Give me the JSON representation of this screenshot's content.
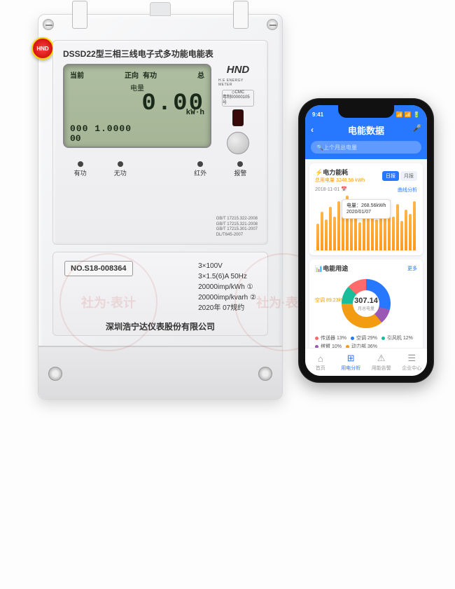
{
  "meter": {
    "badge": "HND",
    "title": "DSSD22型三相三线电子式多功能电能表",
    "lcd": {
      "r1a": "当前",
      "r1b": "正向 有功",
      "r1c": "总",
      "r2": "电量",
      "big": "0.00",
      "unit": "kW·h",
      "small": "000 1.0000",
      "small2": "00"
    },
    "brand": "HND",
    "brand_sub": "H.E ENERGY METER",
    "cert_top": "◇CMC",
    "cert_bot": "粤制00000105号",
    "leds": [
      "有功",
      "无功",
      "",
      "红外",
      "报警"
    ],
    "gb": [
      "GB/T 17215.322-2008",
      "GB/T 17215.321-2008",
      "GB/T 17215.301-2007",
      "DL/T645-2007"
    ],
    "serial": "NO.S18-008364",
    "specs": [
      "3×100V",
      "3×1.5(6)A    50Hz",
      "20000imp/kWh  ①",
      "20000imp/kvarh ②",
      "2020年    07规约"
    ],
    "mfr": "深圳浩宁达仪表股份有限公司",
    "watermark": "社为·表计"
  },
  "phone": {
    "time": "9:41",
    "signal": "📶 📶 🔋",
    "header": "电能数据",
    "search_ph": "上个月总电量",
    "card1": {
      "title": "电力能耗",
      "sub": "总用电量 3248.56 kWh",
      "pills": [
        "日报",
        "月报"
      ],
      "date": "2018-11-01  📅",
      "link": "曲线分析",
      "bars": [
        38,
        55,
        44,
        62,
        48,
        70,
        52,
        78,
        46,
        64,
        40,
        58,
        50,
        68,
        44,
        60,
        54,
        72,
        48,
        66,
        42,
        58,
        52,
        70
      ],
      "bar_color": "#ff9a1f",
      "tooltip_l1": "电量：268.56kWh",
      "tooltip_l2": "2020/01/07"
    },
    "card2": {
      "title": "电能用途",
      "more": "更多",
      "total": "307.14",
      "total_lbl": "月总电量",
      "side_lbl": "空调 89.23kWh",
      "colors": {
        "空调": "#2878ff",
        "引风机": "#1abc9c",
        "传送器": "#ff6b6b",
        "搭臂": "#9b59b6",
        "动力部": "#f39c12"
      },
      "legend": [
        {
          "name": "传送器",
          "pct": "13%",
          "c": "#ff6b6b"
        },
        {
          "name": "空调",
          "pct": "29%",
          "c": "#2878ff"
        },
        {
          "name": "引风机",
          "pct": "12%",
          "c": "#1abc9c"
        },
        {
          "name": "搭臂",
          "pct": "10%",
          "c": "#9b59b6"
        },
        {
          "name": "动力部",
          "pct": "36%",
          "c": "#f39c12"
        }
      ]
    },
    "tabs": [
      {
        "ico": "⌂",
        "lbl": "首页"
      },
      {
        "ico": "⊞",
        "lbl": "用电分析"
      },
      {
        "ico": "⚠",
        "lbl": "用能告警"
      },
      {
        "ico": "☰",
        "lbl": "企业中心"
      }
    ],
    "active_tab": 1
  }
}
